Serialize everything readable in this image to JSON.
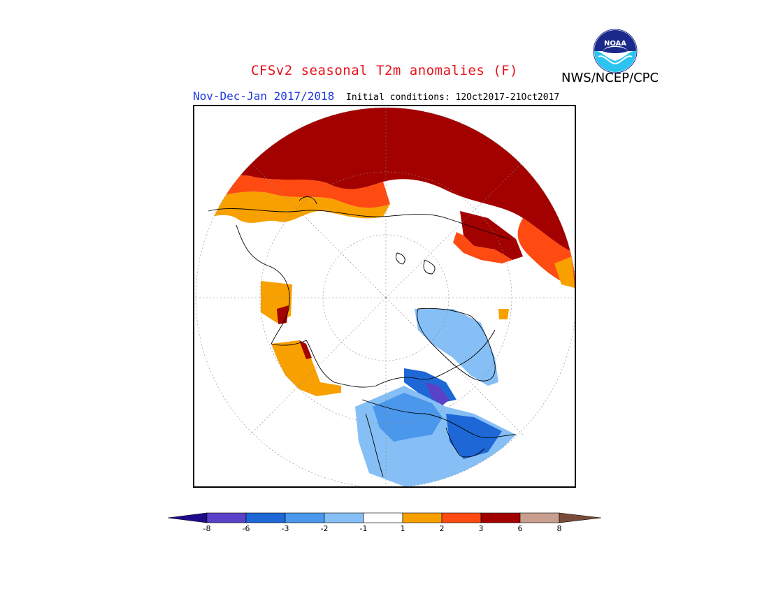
{
  "title": "CFSv2 seasonal T2m anomalies (F)",
  "agency": "NWS/NCEP/CPC",
  "logo_text": "NOAA",
  "period": "Nov-Dec-Jan 2017/2018",
  "initial_conditions": "Initial conditions: 12Oct2017-21Oct2017",
  "colorbar": {
    "ticks": [
      "-8",
      "-6",
      "-3",
      "-2",
      "-1",
      "1",
      "2",
      "3",
      "6",
      "8"
    ],
    "colors": [
      "#1d0b8c",
      "#5a42c8",
      "#1d68d6",
      "#4a97eb",
      "#86bff5",
      "#ffffff",
      "#f8a000",
      "#ff4a12",
      "#a30000",
      "#c89e8e",
      "#7a4a3a"
    ]
  },
  "map_colors": {
    "ocean": "#ffffff",
    "warm_1_2": "#f8a000",
    "warm_2_3": "#ff4a12",
    "warm_3_6": "#a30000",
    "cold_1_2": "#86bff5",
    "cold_2_3": "#4a97eb",
    "cold_3_6": "#1d68d6",
    "cold_6_8": "#5a42c8"
  }
}
